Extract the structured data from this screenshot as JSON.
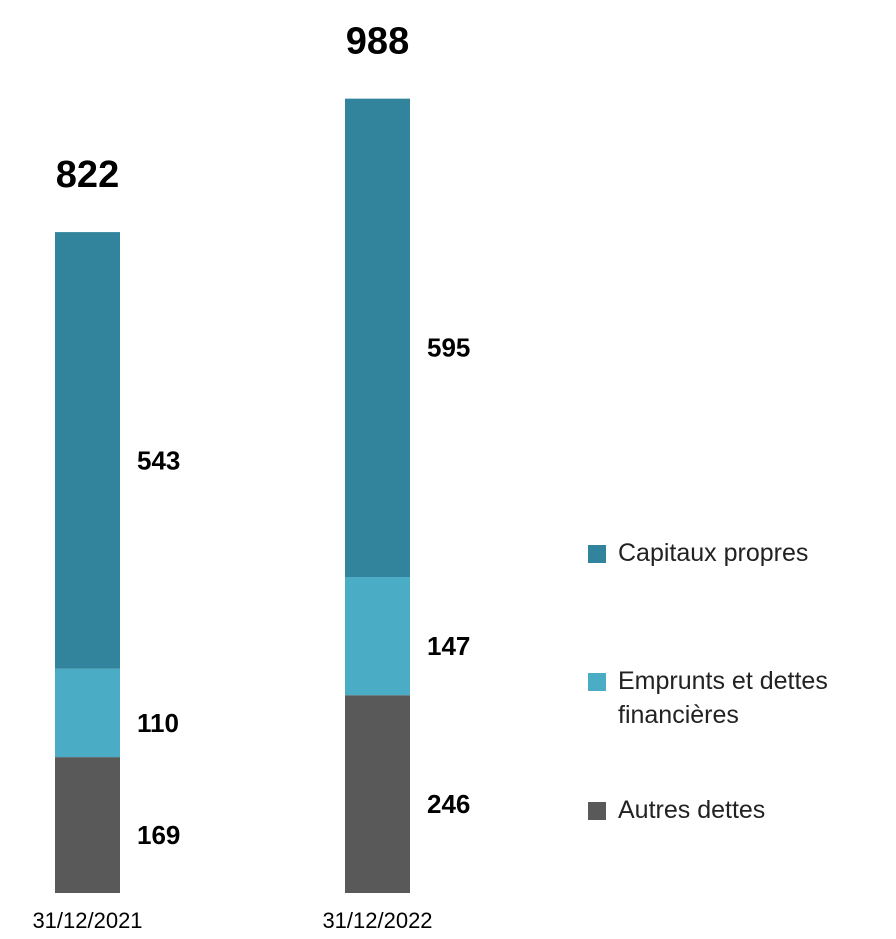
{
  "chart_data": {
    "type": "stacked_bar",
    "categories": [
      "31/12/2021",
      "31/12/2022"
    ],
    "series": [
      {
        "name": "Autres dettes",
        "color": "#595959",
        "values": [
          169,
          246
        ]
      },
      {
        "name": "Emprunts et dettes financières",
        "color": "#4bacc6",
        "values": [
          110,
          147
        ]
      },
      {
        "name": "Capitaux propres",
        "color": "#31849b",
        "values": [
          543,
          595
        ]
      }
    ],
    "totals": [
      822,
      988
    ]
  }
}
